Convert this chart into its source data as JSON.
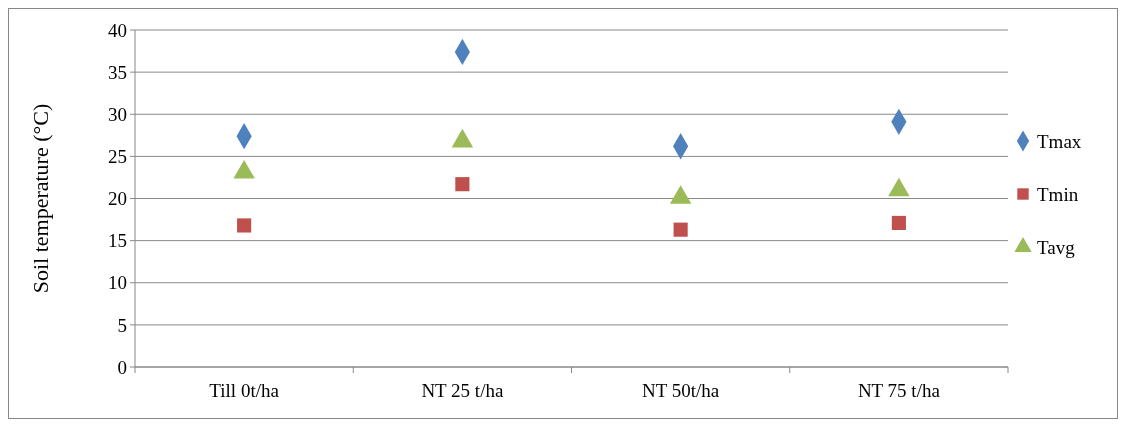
{
  "chart_data": {
    "type": "scatter",
    "ylabel": "Soil temperature  (°C)",
    "categories": [
      "Till 0t/ha",
      "NT 25 t/ha",
      "NT 50t/ha",
      "NT 75 t/ha"
    ],
    "series": [
      {
        "name": "Tmax",
        "color": "#4f81bd",
        "marker": "diamond",
        "values": [
          27.4,
          37.4,
          26.2,
          29.1
        ]
      },
      {
        "name": "Tmin",
        "color": "#c0504d",
        "marker": "square",
        "values": [
          16.8,
          21.7,
          16.3,
          17.1
        ]
      },
      {
        "name": "Tavg",
        "color": "#9bbb59",
        "marker": "triangle",
        "values": [
          23.1,
          26.8,
          20.1,
          21.0
        ]
      }
    ],
    "ylim": [
      0,
      40
    ],
    "yticks": [
      0,
      5,
      10,
      15,
      20,
      25,
      30,
      35,
      40
    ],
    "grid": "y",
    "legend": "right"
  }
}
